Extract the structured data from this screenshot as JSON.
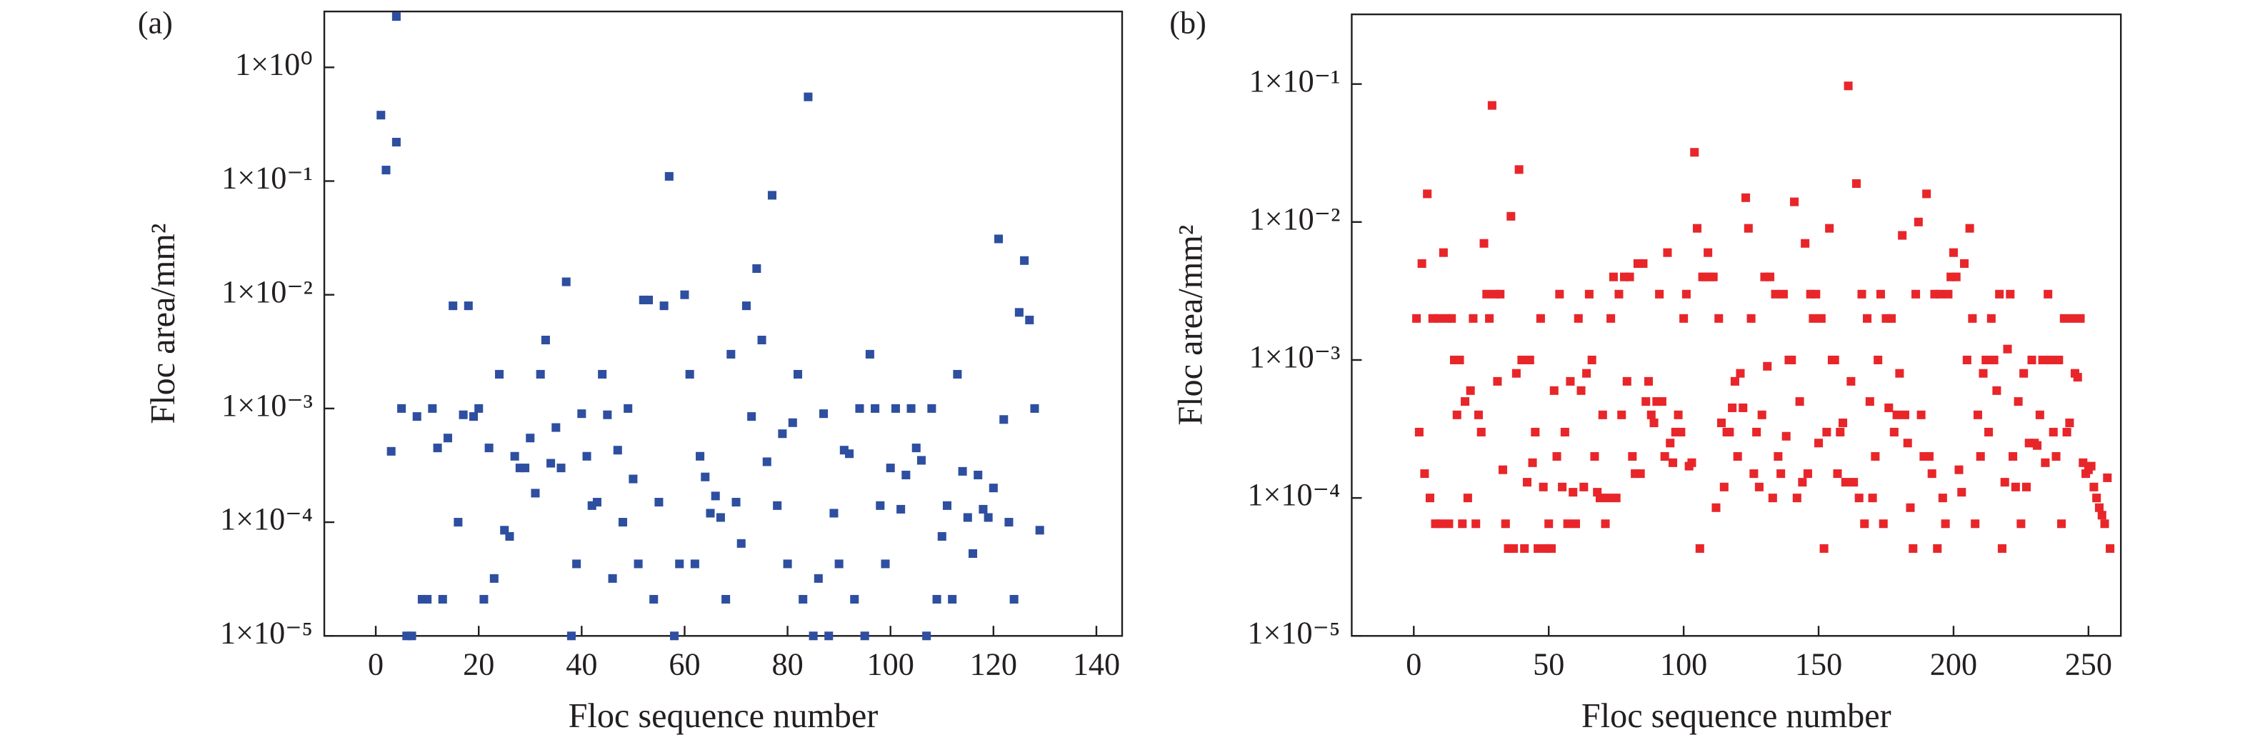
{
  "chart_data": [
    {
      "type": "scatter",
      "title": "(a)",
      "xlabel": "Floc sequence number",
      "ylabel": "Floc area/mm²",
      "color": "#2e4fa0",
      "yscale": "log",
      "xlim": [
        -10,
        145
      ],
      "xticks": [
        0,
        20,
        40,
        60,
        80,
        100,
        120,
        140
      ],
      "ylim": [
        1e-05,
        3.1
      ],
      "yticks": [
        {
          "value": 1e-05,
          "label": "1×10⁻⁵"
        },
        {
          "value": 0.0001,
          "label": "1×10⁻⁴"
        },
        {
          "value": 0.001,
          "label": "1×10⁻³"
        },
        {
          "value": 0.01,
          "label": "1×10⁻²"
        },
        {
          "value": 0.1,
          "label": "1×10⁻¹"
        },
        {
          "value": 1,
          "label": "1×10⁰"
        }
      ],
      "x": [
        1,
        2,
        3,
        4,
        4,
        5,
        6,
        7,
        8,
        9,
        10,
        11,
        12,
        13,
        14,
        15,
        16,
        17,
        18,
        19,
        20,
        21,
        22,
        23,
        24,
        25,
        26,
        27,
        28,
        29,
        30,
        31,
        32,
        33,
        34,
        35,
        36,
        37,
        38,
        39,
        40,
        41,
        42,
        43,
        44,
        45,
        46,
        47,
        48,
        49,
        50,
        51,
        52,
        53,
        54,
        55,
        56,
        57,
        58,
        59,
        60,
        61,
        62,
        63,
        64,
        65,
        66,
        67,
        68,
        69,
        70,
        71,
        72,
        73,
        74,
        75,
        76,
        77,
        78,
        79,
        80,
        81,
        82,
        83,
        84,
        85,
        86,
        87,
        88,
        89,
        90,
        91,
        92,
        93,
        94,
        95,
        96,
        97,
        98,
        99,
        100,
        101,
        102,
        103,
        104,
        105,
        106,
        107,
        108,
        109,
        110,
        111,
        112,
        113,
        114,
        115,
        116,
        117,
        118,
        119,
        120,
        121,
        122,
        123,
        124,
        125,
        126,
        127,
        128,
        129
      ],
      "values": [
        0.38,
        0.125,
        0.00042,
        2.8,
        0.22,
        0.001,
        1e-05,
        1e-05,
        0.00085,
        2.1e-05,
        2.1e-05,
        0.001,
        0.00045,
        2.1e-05,
        0.00055,
        0.008,
        0.0001,
        0.00088,
        0.008,
        0.00085,
        0.001,
        2.1e-05,
        0.00045,
        3.2e-05,
        0.002,
        8.5e-05,
        7.5e-05,
        0.00038,
        0.0003,
        0.0003,
        0.00055,
        0.00018,
        0.002,
        0.004,
        0.00033,
        0.00068,
        0.0003,
        0.013,
        1e-05,
        4.3e-05,
        0.0009,
        0.00038,
        0.00014,
        0.00015,
        0.002,
        0.00088,
        3.2e-05,
        0.00043,
        0.0001,
        0.001,
        0.00024,
        4.3e-05,
        0.009,
        0.009,
        2.1e-05,
        0.00015,
        0.008,
        0.11,
        1e-05,
        4.3e-05,
        0.01,
        0.002,
        4.3e-05,
        0.00038,
        0.00025,
        0.00012,
        0.00017,
        0.00011,
        2.1e-05,
        0.003,
        0.00015,
        6.5e-05,
        0.008,
        0.00085,
        0.017,
        0.004,
        0.00034,
        0.075,
        0.00014,
        0.0006,
        4.3e-05,
        0.00075,
        0.002,
        2.1e-05,
        0.55,
        1e-05,
        3.2e-05,
        0.0009,
        1e-05,
        0.00012,
        4.3e-05,
        0.00043,
        0.0004,
        2.1e-05,
        0.001,
        1e-05,
        0.003,
        0.001,
        0.00014,
        4.3e-05,
        0.0003,
        0.001,
        0.00013,
        0.00026,
        0.001,
        0.00045,
        0.00035,
        1e-05,
        0.001,
        2.1e-05,
        7.5e-05,
        0.00014,
        2.1e-05,
        0.002,
        0.00028,
        0.00011,
        5.3e-05,
        0.00026,
        0.00013,
        0.00011,
        0.0002,
        0.031,
        0.0008,
        0.0001,
        2.1e-05,
        0.007,
        0.02,
        0.006,
        0.001,
        8.5e-05
      ]
    },
    {
      "type": "scatter",
      "title": "(b)",
      "xlabel": "Floc sequence number",
      "ylabel": "Floc area/mm²",
      "color": "#e8262a",
      "yscale": "log",
      "xlim": [
        -23,
        262
      ],
      "xticks": [
        0,
        50,
        100,
        150,
        200,
        250
      ],
      "ylim": [
        1e-05,
        0.32
      ],
      "yticks": [
        {
          "value": 1e-05,
          "label": "1×10⁻⁵"
        },
        {
          "value": 0.0001,
          "label": "1×10⁻⁴"
        },
        {
          "value": 0.001,
          "label": "1×10⁻³"
        },
        {
          "value": 0.01,
          "label": "1×10⁻²"
        },
        {
          "value": 0.1,
          "label": "1×10⁻¹"
        }
      ],
      "x": [
        1,
        2,
        3,
        4,
        5,
        6,
        7,
        8,
        9,
        10,
        11,
        12,
        13,
        14,
        15,
        16,
        17,
        18,
        19,
        20,
        21,
        22,
        23,
        24,
        25,
        26,
        27,
        28,
        29,
        30,
        31,
        32,
        33,
        34,
        35,
        36,
        37,
        38,
        39,
        40,
        41,
        42,
        43,
        44,
        45,
        46,
        47,
        48,
        49,
        50,
        51,
        52,
        53,
        54,
        55,
        56,
        57,
        58,
        59,
        60,
        61,
        62,
        63,
        64,
        65,
        66,
        67,
        68,
        69,
        70,
        71,
        72,
        73,
        74,
        75,
        76,
        77,
        78,
        79,
        80,
        81,
        82,
        83,
        84,
        85,
        86,
        87,
        88,
        89,
        90,
        91,
        92,
        93,
        94,
        95,
        96,
        97,
        98,
        99,
        100,
        101,
        102,
        103,
        104,
        105,
        106,
        107,
        108,
        109,
        110,
        111,
        112,
        113,
        114,
        115,
        116,
        117,
        118,
        119,
        120,
        121,
        122,
        123,
        124,
        125,
        126,
        127,
        128,
        129,
        130,
        131,
        132,
        133,
        134,
        135,
        136,
        137,
        138,
        139,
        140,
        141,
        142,
        143,
        144,
        145,
        146,
        147,
        148,
        149,
        150,
        151,
        152,
        153,
        154,
        155,
        156,
        157,
        158,
        159,
        160,
        161,
        162,
        163,
        164,
        165,
        166,
        167,
        168,
        169,
        170,
        171,
        172,
        173,
        174,
        175,
        176,
        177,
        178,
        179,
        180,
        181,
        182,
        183,
        184,
        185,
        186,
        187,
        188,
        189,
        190,
        191,
        192,
        193,
        194,
        195,
        196,
        197,
        198,
        199,
        200,
        201,
        202,
        203,
        204,
        205,
        206,
        207,
        208,
        209,
        210,
        211,
        212,
        213,
        214,
        215,
        216,
        217,
        218,
        219,
        220,
        221,
        222,
        223,
        224,
        225,
        226,
        227,
        228,
        229,
        230,
        231,
        232,
        233,
        234,
        235,
        236,
        237,
        238,
        239,
        240,
        241,
        242,
        243,
        244,
        245,
        246,
        247,
        248,
        249,
        250,
        251,
        252,
        253,
        254,
        255,
        256,
        257,
        258
      ],
      "values": [
        0.002,
        0.0003,
        0.005,
        0.00015,
        0.016,
        0.0001,
        0.002,
        6.5e-05,
        0.002,
        6.5e-05,
        0.006,
        0.002,
        6.5e-05,
        0.002,
        0.001,
        0.0004,
        0.001,
        6.5e-05,
        0.0005,
        0.0001,
        0.0006,
        0.002,
        6.5e-05,
        0.0004,
        0.0003,
        0.007,
        0.003,
        0.002,
        0.07,
        0.003,
        0.0007,
        0.003,
        0.00016,
        6.5e-05,
        4.3e-05,
        0.011,
        4.3e-05,
        0.0008,
        0.024,
        0.001,
        4.3e-05,
        0.00013,
        0.001,
        0.00018,
        0.0003,
        4.3e-05,
        0.002,
        0.00012,
        4.3e-05,
        6.5e-05,
        4.3e-05,
        0.0006,
        0.0002,
        0.003,
        0.00012,
        0.0003,
        6.5e-05,
        0.0007,
        0.00011,
        6.5e-05,
        0.002,
        0.0006,
        0.00012,
        0.0008,
        0.003,
        0.001,
        0.0002,
        0.00011,
        0.0001,
        0.0004,
        6.5e-05,
        0.0001,
        0.002,
        0.004,
        0.0001,
        0.003,
        0.0004,
        0.004,
        0.0007,
        0.004,
        0.0002,
        0.00015,
        0.005,
        0.00015,
        0.005,
        0.0005,
        0.0007,
        0.0004,
        0.00035,
        0.0005,
        0.003,
        0.0005,
        0.0002,
        0.006,
        0.00025,
        0.00018,
        0.0003,
        0.0004,
        0.0003,
        0.002,
        0.003,
        0.00017,
        0.00018,
        0.032,
        0.009,
        4.3e-05,
        0.004,
        0.004,
        0.006,
        0.004,
        0.004,
        8.5e-05,
        0.002,
        0.00035,
        0.00012,
        0.0003,
        0.0003,
        0.00045,
        0.0007,
        0.0002,
        0.0008,
        0.00045,
        0.015,
        0.009,
        0.002,
        0.00015,
        0.0003,
        0.00012,
        0.0004,
        0.004,
        0.0009,
        0.004,
        0.0001,
        0.003,
        0.0002,
        0.00015,
        0.003,
        0.00028,
        0.001,
        0.001,
        0.014,
        0.0001,
        0.0005,
        0.00013,
        0.007,
        0.00015,
        0.003,
        0.002,
        0.003,
        0.00025,
        0.002,
        4.3e-05,
        0.0003,
        0.009,
        0.001,
        0.001,
        0.00015,
        0.0003,
        0.00035,
        0.00013,
        0.097,
        0.0007,
        0.00013,
        0.019,
        0.0001,
        0.003,
        6.5e-05,
        0.002,
        0.0005,
        0.0001,
        0.0002,
        0.001,
        0.003,
        6.5e-05,
        0.002,
        0.00045,
        0.002,
        0.0003,
        0.0004,
        0.0008,
        0.008,
        0.0004,
        0.00025,
        8.5e-05,
        4.3e-05,
        0.003,
        0.01,
        0.0004,
        0.0002,
        0.016,
        0.0002,
        0.00015,
        0.003,
        4.3e-05,
        0.003,
        0.0001,
        6.5e-05,
        0.003,
        0.004,
        0.006,
        0.004,
        0.00016,
        0.00011,
        0.005,
        0.001,
        0.009,
        0.002,
        6.5e-05,
        0.0004,
        0.0002,
        0.0008,
        0.001,
        0.0003,
        0.002,
        0.001,
        0.0006,
        0.003,
        4.3e-05,
        0.00013,
        0.0012,
        0.003,
        0.0002,
        0.00012,
        0.0005,
        6.5e-05,
        0.0008,
        0.00012,
        0.00025,
        0.001,
        0.00025,
        0.00024,
        0.0004,
        0.001,
        0.00018,
        0.003,
        0.001,
        0.0003,
        0.0002,
        0.001,
        6.5e-05,
        0.002,
        0.0003,
        0.00035,
        0.002,
        0.0008,
        0.00075,
        0.002,
        0.00018,
        0.00015,
        0.00016,
        0.00017,
        0.00012,
        0.0001,
        8.5e-05,
        7.5e-05,
        6.5e-05,
        0.00014,
        4.3e-05
      ]
    }
  ]
}
